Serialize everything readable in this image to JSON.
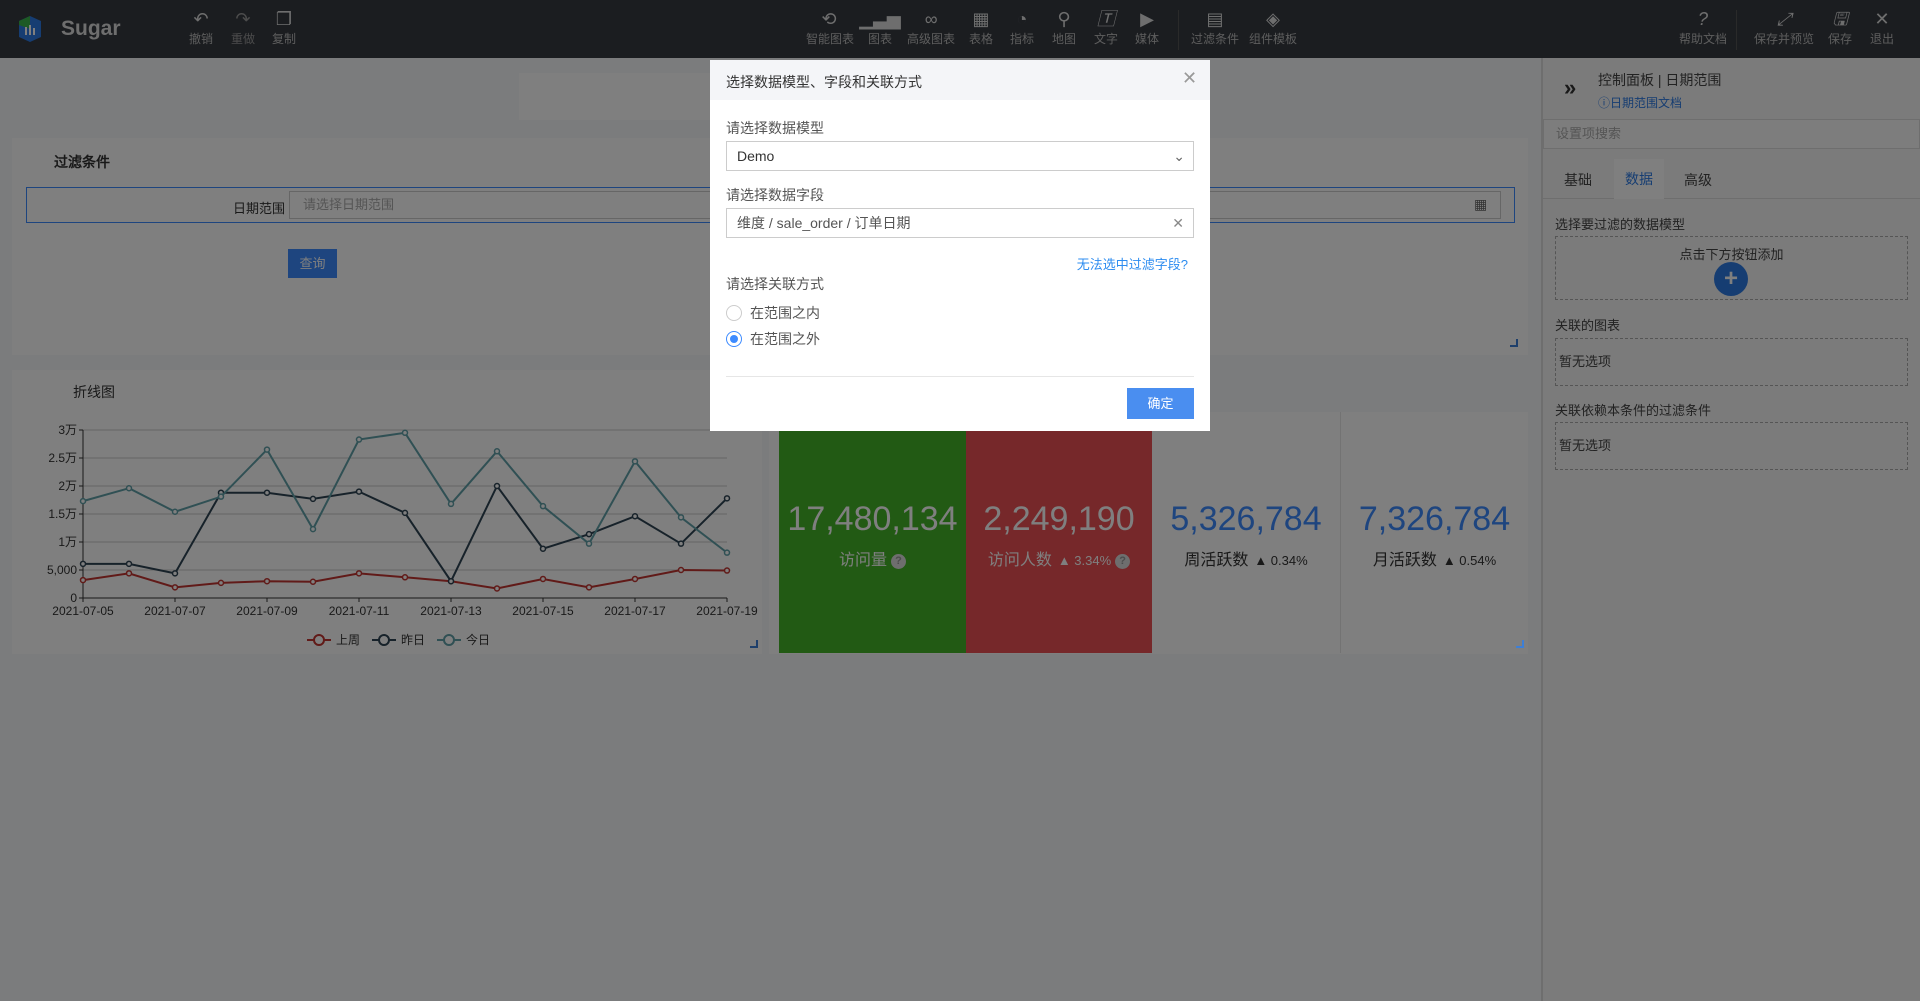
{
  "app": {
    "name": "Sugar"
  },
  "toolbar": {
    "left": [
      {
        "label": "撤销",
        "icon": "undo-icon"
      },
      {
        "label": "重做",
        "icon": "redo-icon"
      },
      {
        "label": "复制",
        "icon": "copy-icon"
      }
    ],
    "center": [
      {
        "label": "智能图表",
        "icon": "smart-chart-icon"
      },
      {
        "label": "图表",
        "icon": "bar-chart-icon"
      },
      {
        "label": "高级图表",
        "icon": "advanced-chart-icon"
      },
      {
        "label": "表格",
        "icon": "table-icon"
      },
      {
        "label": "指标",
        "icon": "gauge-icon"
      },
      {
        "label": "地图",
        "icon": "map-pin-icon"
      },
      {
        "label": "文字",
        "icon": "text-icon"
      },
      {
        "label": "媒体",
        "icon": "media-icon"
      },
      {
        "label": "过滤条件",
        "icon": "filter-icon"
      },
      {
        "label": "组件模板",
        "icon": "template-icon"
      }
    ],
    "right": [
      {
        "label": "帮助文档",
        "icon": "help-icon"
      },
      {
        "label": "保存并预览",
        "icon": "expand-icon"
      },
      {
        "label": "保存",
        "icon": "save-icon"
      },
      {
        "label": "退出",
        "icon": "close-icon"
      }
    ]
  },
  "filter": {
    "title": "过滤条件",
    "field_label": "日期范围",
    "placeholder": "请选择日期范围",
    "query": "查询"
  },
  "line_chart_panel": {
    "title": "折线图"
  },
  "chart_data": {
    "type": "line",
    "x": [
      "2021-07-05",
      "2021-07-06",
      "2021-07-07",
      "2021-07-08",
      "2021-07-09",
      "2021-07-10",
      "2021-07-11",
      "2021-07-12",
      "2021-07-13",
      "2021-07-14",
      "2021-07-15",
      "2021-07-16",
      "2021-07-17",
      "2021-07-18",
      "2021-07-19"
    ],
    "x_tick_labels": [
      "2021-07-05",
      "2021-07-07",
      "2021-07-09",
      "2021-07-11",
      "2021-07-13",
      "2021-07-15",
      "2021-07-17",
      "2021-07-19"
    ],
    "y_tick_labels": [
      "0",
      "5,000",
      "1万",
      "1.5万",
      "2万",
      "2.5万",
      "3万"
    ],
    "ylim": [
      0,
      30000
    ],
    "grid": true,
    "legend": "bottom",
    "series": [
      {
        "name": "上周",
        "color": "#c23531",
        "values": [
          3200,
          4400,
          1900,
          2700,
          3000,
          2900,
          4400,
          3700,
          3000,
          1700,
          3400,
          1900,
          3400,
          5000,
          4900
        ]
      },
      {
        "name": "昨日",
        "color": "#2f4554",
        "values": [
          6100,
          6100,
          4400,
          18800,
          18800,
          17700,
          19000,
          15200,
          3000,
          20000,
          8800,
          11400,
          14600,
          9700,
          17800
        ]
      },
      {
        "name": "今日",
        "color": "#61a0a8",
        "values": [
          17300,
          19600,
          15400,
          18100,
          26500,
          12300,
          28300,
          29500,
          16800,
          26200,
          16400,
          9700,
          24400,
          14400,
          8100
        ]
      }
    ]
  },
  "kpis": [
    {
      "value": "17,480,134",
      "label": "访问量",
      "change": "",
      "bg": "#44b428"
    },
    {
      "value": "2,249,190",
      "label": "访问人数",
      "change": "▲ 3.34%",
      "bg": "#ec5054"
    },
    {
      "value": "5,326,784",
      "label": "周活跃数",
      "change": "▲ 0.34%",
      "bg": "#ffffff"
    },
    {
      "value": "7,326,784",
      "label": "月活跃数",
      "change": "▲ 0.54%",
      "bg": "#ffffff"
    }
  ],
  "right_panel": {
    "title": "控制面板 | 日期范围",
    "doc_link": "日期范围文档",
    "search_placeholder": "设置项搜索",
    "tabs": [
      "基础",
      "数据",
      "高级"
    ],
    "active_tab": "数据",
    "section1": "选择要过滤的数据模型",
    "add_hint": "点击下方按钮添加",
    "section2": "关联的图表",
    "empty2": "暂无选项",
    "section3": "关联依赖本条件的过滤条件",
    "empty3": "暂无选项"
  },
  "modal": {
    "title": "选择数据模型、字段和关联方式",
    "model_label": "请选择数据模型",
    "model_value": "Demo",
    "field_label": "请选择数据字段",
    "field_value": "维度 / sale_order / 订单日期",
    "help_link": "无法选中过滤字段?",
    "relation_label": "请选择关联方式",
    "options": [
      {
        "label": "在范围之内",
        "checked": false
      },
      {
        "label": "在范围之外",
        "checked": true
      }
    ],
    "confirm": "确定"
  }
}
